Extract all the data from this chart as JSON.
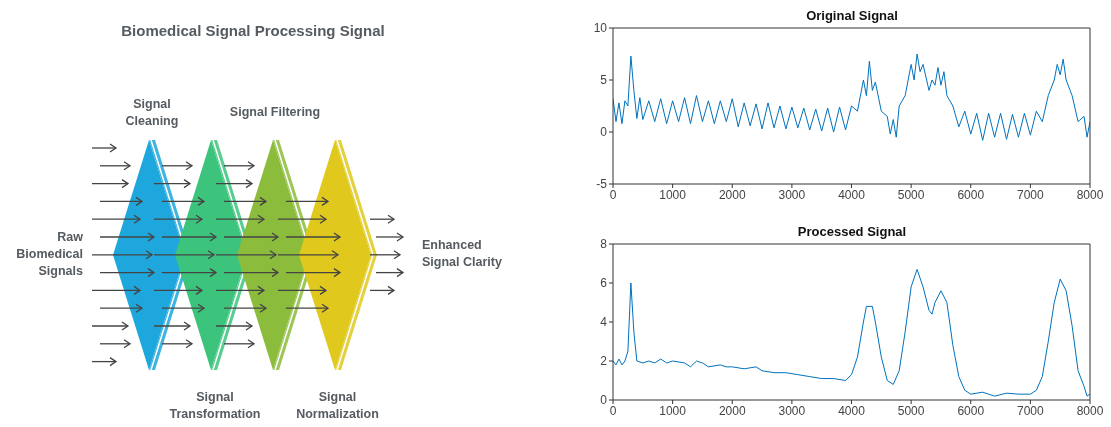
{
  "chart_data": [
    {
      "type": "other",
      "title": "Biomedical Signal Processing Signal",
      "annotations": [
        "Signal Cleaning",
        "Signal Filtering",
        "Raw Biomedical Signals",
        "Enhanced Signal Clarity",
        "Signal Transformation",
        "Signal Normalization"
      ]
    },
    {
      "type": "line",
      "title": "Original Signal",
      "marker": "none",
      "xlim": [
        0,
        8000
      ],
      "xticks": [
        0,
        1000,
        2000,
        3000,
        4000,
        5000,
        6000,
        7000,
        8000
      ],
      "ylim": [
        -5,
        10
      ],
      "yticks": [
        -5,
        0,
        5,
        10
      ],
      "x": [
        0,
        50,
        100,
        150,
        200,
        250,
        300,
        350,
        400,
        450,
        500,
        600,
        700,
        800,
        900,
        1000,
        1100,
        1200,
        1300,
        1400,
        1500,
        1600,
        1700,
        1800,
        1900,
        2000,
        2100,
        2200,
        2300,
        2400,
        2500,
        2600,
        2700,
        2800,
        2900,
        3000,
        3100,
        3200,
        3300,
        3400,
        3500,
        3600,
        3700,
        3800,
        3900,
        4000,
        4100,
        4200,
        4250,
        4300,
        4350,
        4400,
        4500,
        4600,
        4650,
        4700,
        4750,
        4800,
        4900,
        5000,
        5050,
        5100,
        5150,
        5200,
        5300,
        5350,
        5400,
        5450,
        5500,
        5550,
        5600,
        5700,
        5800,
        5900,
        6000,
        6100,
        6200,
        6300,
        6400,
        6500,
        6600,
        6700,
        6800,
        6900,
        7000,
        7100,
        7200,
        7300,
        7400,
        7450,
        7500,
        7550,
        7600,
        7700,
        7800,
        7900,
        7950,
        8000
      ],
      "series": [
        {
          "color": "#0072bd",
          "values": [
            3.2,
            1.0,
            2.8,
            0.8,
            3.0,
            2.5,
            7.3,
            4.0,
            1.3,
            3.3,
            1.2,
            3.0,
            1.0,
            3.2,
            0.8,
            3.0,
            1.0,
            3.3,
            0.8,
            3.5,
            1.0,
            3.0,
            0.8,
            3.0,
            1.0,
            3.2,
            0.5,
            2.8,
            0.6,
            2.7,
            0.3,
            2.8,
            0.4,
            2.5,
            0.3,
            2.4,
            0.4,
            2.3,
            0.2,
            2.2,
            0.1,
            2.3,
            0.0,
            2.4,
            0.2,
            2.5,
            2.0,
            5.0,
            3.5,
            6.8,
            4.0,
            4.8,
            2.0,
            1.5,
            -0.2,
            1.2,
            -0.5,
            2.5,
            3.5,
            6.5,
            5.0,
            7.5,
            5.8,
            6.5,
            4.0,
            5.0,
            4.5,
            6.2,
            4.5,
            5.8,
            3.5,
            2.5,
            0.5,
            2.0,
            -0.2,
            1.8,
            -0.8,
            1.8,
            -0.5,
            1.8,
            -0.7,
            1.7,
            -0.5,
            1.8,
            -0.3,
            2.0,
            1.0,
            3.5,
            5.0,
            6.5,
            5.5,
            7.0,
            5.0,
            3.5,
            1.0,
            1.5,
            -0.5,
            1.0
          ]
        }
      ]
    },
    {
      "type": "line",
      "title": "Processed Signal",
      "marker": "none",
      "xlim": [
        0,
        8000
      ],
      "xticks": [
        0,
        1000,
        2000,
        3000,
        4000,
        5000,
        6000,
        7000,
        8000
      ],
      "ylim": [
        0,
        8
      ],
      "yticks": [
        0,
        2,
        4,
        6,
        8
      ],
      "x": [
        0,
        50,
        100,
        150,
        200,
        250,
        300,
        350,
        400,
        500,
        600,
        700,
        800,
        900,
        1000,
        1200,
        1300,
        1400,
        1500,
        1600,
        1800,
        1900,
        2000,
        2200,
        2400,
        2500,
        2700,
        2900,
        3100,
        3300,
        3500,
        3700,
        3900,
        4000,
        4100,
        4200,
        4250,
        4350,
        4400,
        4500,
        4600,
        4700,
        4800,
        4900,
        5000,
        5100,
        5200,
        5300,
        5350,
        5400,
        5500,
        5600,
        5700,
        5800,
        5900,
        6000,
        6200,
        6400,
        6600,
        6800,
        7000,
        7100,
        7200,
        7300,
        7400,
        7500,
        7600,
        7700,
        7800,
        7900,
        7950,
        8000
      ],
      "series": [
        {
          "color": "#0072bd",
          "values": [
            2.0,
            1.8,
            2.1,
            1.8,
            2.0,
            2.5,
            6.0,
            3.5,
            2.0,
            1.9,
            2.0,
            1.9,
            2.1,
            1.9,
            2.0,
            1.9,
            1.7,
            2.0,
            1.9,
            1.7,
            1.8,
            1.7,
            1.7,
            1.6,
            1.7,
            1.5,
            1.4,
            1.4,
            1.3,
            1.2,
            1.1,
            1.1,
            1.0,
            1.3,
            2.2,
            4.0,
            4.8,
            4.8,
            4.0,
            2.2,
            1.0,
            0.8,
            1.5,
            3.5,
            5.8,
            6.7,
            5.8,
            4.6,
            4.4,
            5.0,
            5.6,
            5.0,
            2.8,
            1.2,
            0.5,
            0.3,
            0.4,
            0.2,
            0.35,
            0.3,
            0.3,
            0.5,
            1.2,
            3.0,
            5.0,
            6.2,
            5.6,
            3.8,
            1.5,
            0.7,
            0.2,
            0.3
          ]
        }
      ]
    }
  ]
}
